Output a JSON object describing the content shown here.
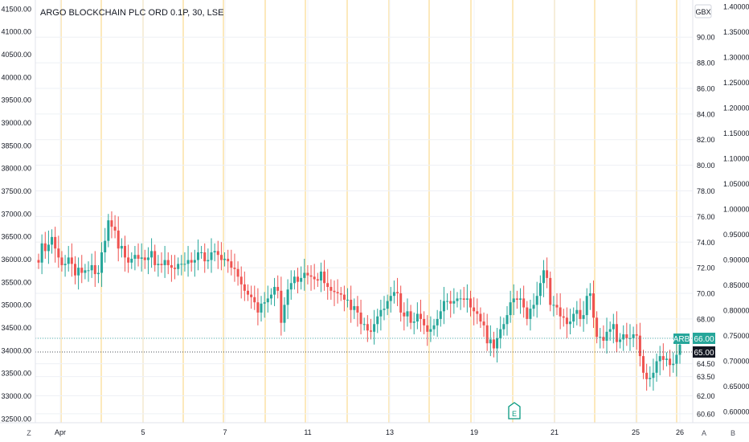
{
  "chart_data": {
    "type": "candlestick",
    "title": "ARGO BLOCKCHAIN PLC ORD 0.1P, 30, LSE",
    "currency": "GBX",
    "left_axis": {
      "ticks": [
        "41500.00",
        "41000.00",
        "40500.00",
        "40000.00",
        "39500.00",
        "39000.00",
        "38500.00",
        "38000.00",
        "37500.00",
        "37000.00",
        "36500.00",
        "36000.00",
        "35500.00",
        "35000.00",
        "34500.00",
        "34000.00",
        "33500.00",
        "33000.00",
        "32500.00"
      ],
      "ylim": [
        32410,
        41690
      ]
    },
    "right_axis": {
      "ticks": [
        "90.00",
        "88.00",
        "86.00",
        "84.00",
        "82.00",
        "80.00",
        "78.00",
        "76.00",
        "74.00",
        "72.00",
        "70.00",
        "68.00",
        "66.50",
        "64.50",
        "63.50",
        "62.00",
        "60.60"
      ],
      "ylim": [
        59.9,
        92.9
      ]
    },
    "far_right_axis": {
      "ticks": [
        "1.40000",
        "1.35000",
        "1.30000",
        "1.25000",
        "1.20000",
        "1.15000",
        "1.10000",
        "1.05000",
        "1.00000",
        "0.95000",
        "0.90000",
        "0.85000",
        "0.80000",
        "0.75000",
        "0.70000",
        "0.65000",
        "0.60000"
      ],
      "ylim": [
        0.578,
        1.413
      ]
    },
    "x_ticks": [
      "Apr",
      "5",
      "7",
      "11",
      "13",
      "19",
      "21",
      "25",
      "26"
    ],
    "symbol": "ARB",
    "last_price": "66.00",
    "crosshair_price": "65.00",
    "earnings_marker": "E",
    "bottom_left_label": "Z",
    "bottom_right_labels": [
      "A",
      "B"
    ],
    "grid": true,
    "session_breaks": true,
    "candles_o": [
      72.6,
      72.4,
      73.9,
      73.3,
      73.8,
      74.4,
      73.5,
      72.8,
      72.2,
      72.3,
      72.8,
      72.3,
      71.4,
      72.0,
      71.6,
      71.8,
      71.8,
      72.2,
      71.5,
      71.6,
      73.2,
      74.1,
      75.7,
      75.2,
      74.9,
      73.5,
      73.7,
      72.8,
      72.4,
      72.7,
      73.0,
      72.7,
      72.8,
      72.6,
      72.8,
      73.3,
      72.2,
      72.3,
      72.2,
      72.6,
      72.2,
      72.0,
      71.9,
      72.3,
      72.3,
      72.3,
      72.6,
      72.4,
      72.6,
      73.2,
      73.2,
      72.5,
      72.6,
      73.2,
      73.3,
      73.0,
      72.6,
      72.7,
      72.5,
      72.0,
      71.9,
      71.3,
      70.7,
      70.2,
      69.9,
      69.7,
      69.3,
      68.5,
      69.2,
      69.3,
      69.6,
      69.9,
      70.5,
      70.2,
      67.7,
      69.1,
      70.3,
      70.8,
      71.3,
      70.9,
      71.2,
      71.6,
      71.4,
      71.3,
      71.1,
      71.0,
      71.7,
      70.8,
      70.5,
      70.2,
      70.1,
      70.0,
      69.9,
      69.5,
      69.5,
      68.7,
      69.0,
      68.5,
      67.6,
      67.6,
      67.1,
      67.0,
      67.6,
      68.2,
      68.7,
      68.8,
      69.4,
      69.8,
      70.1,
      70.0,
      68.5,
      68.2,
      68.6,
      67.7,
      67.8,
      68.4,
      68.0,
      67.5,
      67.0,
      67.2,
      67.5,
      68.0,
      68.6,
      69.4,
      69.4,
      69.2,
      69.4,
      69.6,
      69.6,
      69.5,
      69.6,
      68.9,
      68.6,
      68.4,
      67.8,
      67.5,
      66.1,
      66.4,
      65.7,
      66.5,
      67.2,
      67.6,
      68.3,
      69.3,
      69.6,
      69.5,
      69.6,
      68.9,
      68.0,
      68.8,
      69.1,
      69.8,
      70.8,
      71.8,
      71.2,
      69.1,
      69.1,
      68.9,
      68.2,
      68.1,
      67.6,
      67.8,
      68.4,
      68.7,
      68.0,
      68.3,
      69.8,
      70.0,
      68.1,
      66.6,
      66.6,
      66.3,
      67.0,
      67.2,
      67.6,
      66.2,
      66.4,
      66.8,
      66.5,
      66.5,
      66.8,
      66.7,
      65.1,
      63.8,
      63.3,
      63.4,
      63.8,
      64.7,
      65.1,
      64.8,
      64.9,
      64.4,
      64.5,
      65.2
    ],
    "candles_c": [
      72.4,
      73.9,
      73.3,
      73.8,
      74.4,
      73.5,
      72.8,
      72.2,
      72.3,
      72.8,
      72.3,
      71.4,
      72.0,
      71.6,
      71.8,
      71.8,
      72.2,
      71.5,
      71.6,
      73.2,
      74.1,
      75.7,
      75.2,
      74.9,
      73.5,
      73.7,
      72.8,
      72.4,
      72.7,
      73.0,
      72.7,
      72.8,
      72.6,
      72.8,
      73.3,
      72.2,
      72.3,
      72.2,
      72.6,
      72.2,
      72.0,
      71.9,
      72.3,
      72.3,
      72.3,
      72.6,
      72.4,
      72.6,
      73.2,
      73.2,
      72.5,
      72.6,
      73.2,
      73.3,
      73.0,
      72.6,
      72.7,
      72.5,
      72.0,
      71.9,
      71.3,
      70.7,
      70.2,
      69.9,
      69.7,
      69.3,
      68.5,
      69.2,
      69.3,
      69.6,
      69.9,
      70.5,
      70.2,
      67.7,
      69.1,
      70.3,
      70.8,
      71.3,
      70.9,
      71.2,
      71.6,
      71.4,
      71.3,
      71.1,
      71.0,
      71.7,
      70.8,
      70.5,
      70.2,
      70.1,
      70.0,
      69.9,
      69.5,
      69.5,
      68.7,
      69.0,
      68.5,
      67.6,
      67.6,
      67.1,
      67.0,
      67.6,
      68.2,
      68.7,
      68.8,
      69.4,
      69.8,
      70.1,
      70.0,
      68.5,
      68.2,
      68.6,
      67.7,
      67.8,
      68.4,
      68.0,
      67.5,
      67.0,
      67.2,
      67.5,
      68.0,
      68.6,
      69.4,
      69.4,
      69.2,
      69.4,
      69.6,
      69.6,
      69.5,
      69.6,
      68.9,
      68.6,
      68.4,
      67.8,
      67.5,
      66.1,
      66.4,
      65.7,
      66.5,
      67.2,
      67.6,
      68.3,
      69.3,
      69.6,
      69.5,
      69.6,
      68.9,
      68.0,
      68.8,
      69.1,
      69.8,
      70.8,
      71.8,
      71.2,
      69.1,
      69.1,
      68.9,
      68.2,
      68.1,
      67.6,
      67.8,
      68.4,
      68.7,
      68.0,
      68.3,
      69.8,
      70.0,
      68.1,
      66.6,
      66.6,
      66.3,
      67.0,
      67.2,
      67.6,
      66.2,
      66.4,
      66.8,
      66.5,
      66.5,
      66.8,
      66.7,
      65.1,
      63.8,
      63.3,
      63.4,
      63.8,
      64.7,
      65.1,
      64.8,
      64.9,
      64.4,
      64.5,
      65.2,
      66.0
    ]
  }
}
